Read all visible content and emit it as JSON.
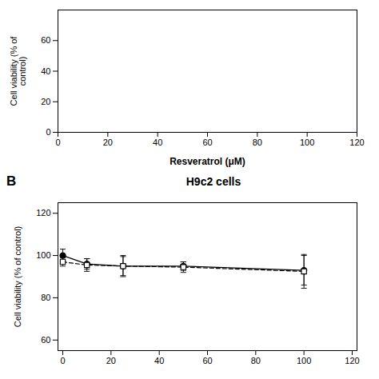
{
  "chart_data": [
    {
      "type": "line",
      "xlabel": "Resveratrol (μM)",
      "ylabel": "Cell viability (% of\ncontrol)",
      "xlim": [
        0,
        120
      ],
      "ylim": [
        0,
        80
      ],
      "xticks": [
        0,
        20,
        40,
        60,
        80,
        100,
        120
      ],
      "yticks": [
        0,
        20,
        40,
        60
      ],
      "series": []
    },
    {
      "type": "line",
      "title": "H9c2 cells",
      "annotations": [
        "B"
      ],
      "ylabel": "Cell viability (% of control)",
      "xlim": [
        -2,
        122
      ],
      "ylim": [
        55,
        125
      ],
      "xticks": [
        0,
        20,
        40,
        60,
        80,
        100,
        120
      ],
      "yticks": [
        60,
        80,
        100,
        120
      ],
      "x": [
        0,
        10,
        25,
        50,
        100
      ],
      "series": [
        {
          "values": [
            100,
            96,
            95,
            95,
            93
          ],
          "yerr": [
            3,
            2.5,
            4.5,
            2,
            7
          ],
          "color": "black",
          "marker": "circle",
          "line_style": "solid"
        },
        {
          "values": [
            97,
            95.5,
            95,
            94.5,
            92.5
          ],
          "yerr": [
            2,
            3,
            5,
            2.5,
            8
          ],
          "color": "black",
          "marker": "open square",
          "line_style": "dashed"
        }
      ]
    }
  ]
}
